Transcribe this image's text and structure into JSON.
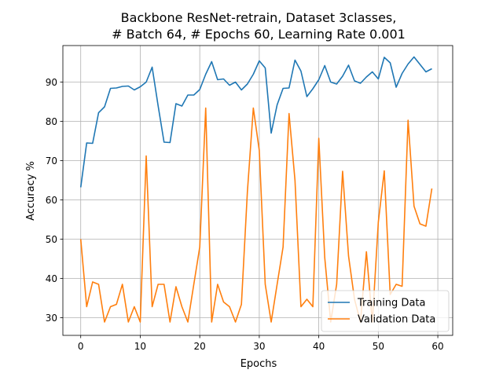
{
  "chart_data": {
    "type": "line",
    "title_lines": [
      "Backbone ResNet-retrain, Dataset 3classes,",
      "# Batch 64, # Epochs 60, Learning Rate 0.001"
    ],
    "xlabel": "Epochs",
    "ylabel": "Accuracy %",
    "xlim": [
      -3,
      62.5
    ],
    "ylim": [
      25.5,
      99.3
    ],
    "xticks": [
      0,
      10,
      20,
      30,
      40,
      50,
      60
    ],
    "yticks": [
      30,
      40,
      50,
      60,
      70,
      80,
      90
    ],
    "grid": true,
    "legend_position": "lower-right",
    "x": [
      0,
      1,
      2,
      3,
      4,
      5,
      6,
      7,
      8,
      9,
      10,
      11,
      12,
      13,
      14,
      15,
      16,
      17,
      18,
      19,
      20,
      21,
      22,
      23,
      24,
      25,
      26,
      27,
      28,
      29,
      30,
      31,
      32,
      33,
      34,
      35,
      36,
      37,
      38,
      39,
      40,
      41,
      42,
      43,
      44,
      45,
      46,
      47,
      48,
      49,
      50,
      51,
      52,
      53,
      54,
      55,
      56,
      57,
      58,
      59
    ],
    "series": [
      {
        "name": "Training Data",
        "color": "#1f77b4",
        "values": [
          63.2,
          74.5,
          74.4,
          82.2,
          83.7,
          88.4,
          88.5,
          88.9,
          89.0,
          88.0,
          88.8,
          90.0,
          93.8,
          84.0,
          74.7,
          74.6,
          84.5,
          83.9,
          86.7,
          86.7,
          88.1,
          92.0,
          95.2,
          90.6,
          90.8,
          89.2,
          90.0,
          88.0,
          89.5,
          92.0,
          95.4,
          93.6,
          77.0,
          84.2,
          88.4,
          88.5,
          95.6,
          92.8,
          86.3,
          88.3,
          90.6,
          94.2,
          90.0,
          89.5,
          91.5,
          94.3,
          90.3,
          89.7,
          91.3,
          92.6,
          90.8,
          96.3,
          94.9,
          88.7,
          92.2,
          94.6,
          96.4,
          94.5,
          92.6,
          93.4
        ]
      },
      {
        "name": "Validation Data",
        "color": "#ff7f0e",
        "values": [
          50.0,
          32.8,
          39.1,
          38.5,
          28.9,
          32.8,
          33.4,
          38.5,
          28.9,
          32.8,
          28.9,
          71.2,
          32.8,
          38.5,
          38.5,
          28.9,
          37.9,
          32.8,
          28.9,
          38.5,
          48.0,
          83.4,
          28.9,
          38.5,
          34.0,
          32.8,
          28.9,
          33.4,
          62.0,
          83.4,
          72.6,
          38.5,
          28.9,
          38.5,
          48.0,
          82.0,
          65.0,
          32.8,
          34.7,
          32.8,
          75.7,
          45.3,
          28.9,
          38.5,
          67.3,
          45.7,
          34.7,
          28.9,
          46.8,
          28.9,
          54.3,
          67.4,
          35.9,
          38.5,
          38.0,
          80.3,
          58.4,
          53.9,
          53.3,
          62.9
        ]
      }
    ]
  }
}
